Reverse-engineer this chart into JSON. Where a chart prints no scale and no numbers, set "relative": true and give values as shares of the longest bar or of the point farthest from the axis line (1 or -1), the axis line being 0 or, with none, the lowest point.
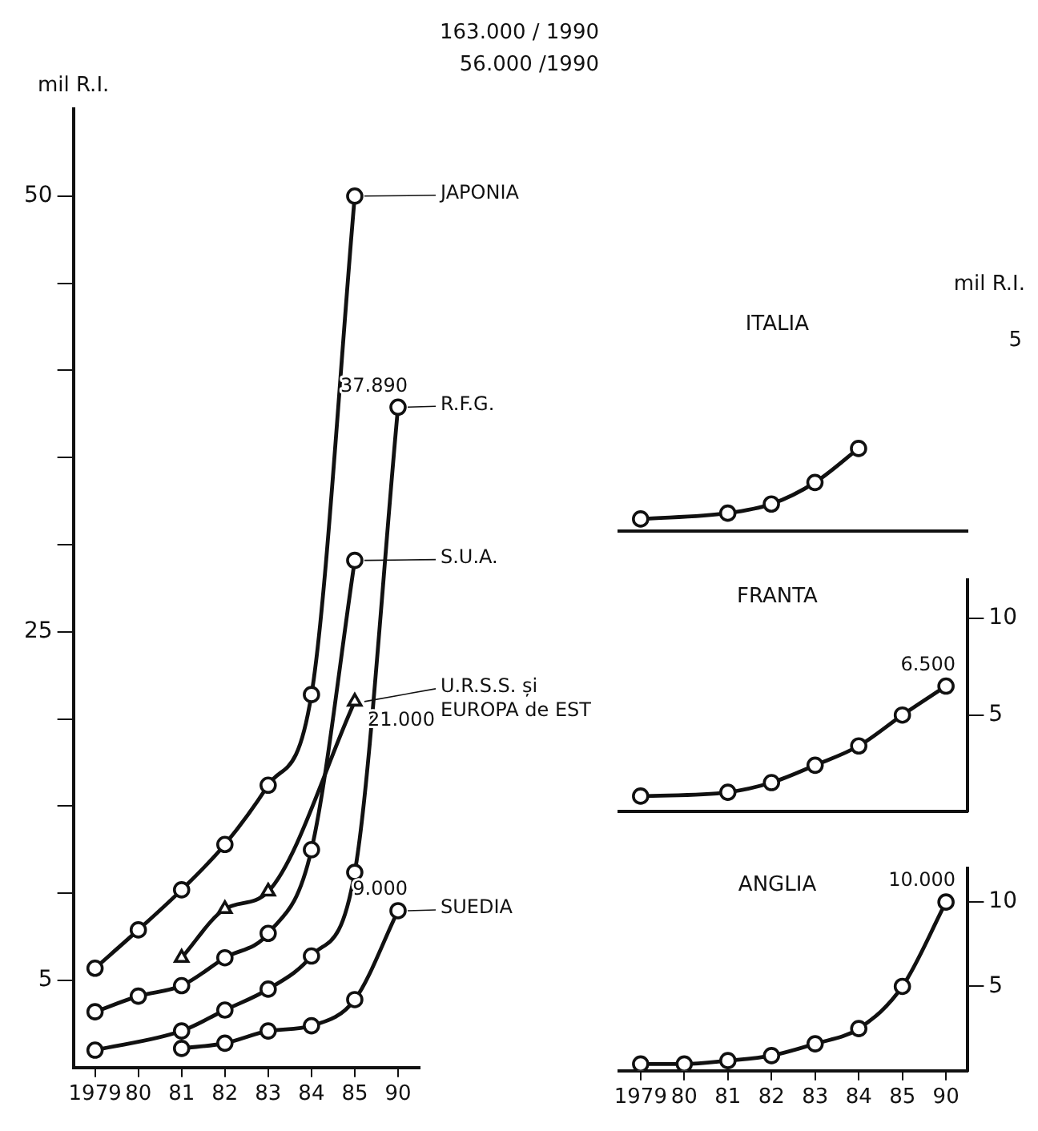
{
  "chart_data": [
    {
      "type": "line",
      "ylabel": "mil R.I.",
      "legend": "right",
      "categories": [
        "1979",
        "80",
        "81",
        "82",
        "83",
        "84",
        "85",
        "90"
      ],
      "ylim": [
        0,
        55
      ],
      "yticks": [
        5,
        {
          "value": 10,
          "label": null
        },
        {
          "value": 15,
          "label": null
        },
        {
          "value": 20,
          "label": null
        },
        25,
        {
          "value": 30,
          "label": null
        },
        {
          "value": 35,
          "label": null
        },
        {
          "value": 40,
          "label": null
        },
        {
          "value": 45,
          "label": null
        },
        50
      ],
      "grid": false,
      "marker": "circle",
      "annotations": [
        "163.000 / 1990",
        "56.000 /1990"
      ],
      "series": [
        {
          "name": "JAPONIA",
          "color": "#111111",
          "values": [
            5.7,
            7.9,
            10.2,
            12.8,
            16.2,
            21.4,
            50,
            null
          ]
        },
        {
          "name": "S.U.A.",
          "color": "#111111",
          "values": [
            3.2,
            4.1,
            4.7,
            6.3,
            7.7,
            12.5,
            29.1,
            null
          ]
        },
        {
          "name": "R.F.G.",
          "color": "#111111",
          "values": [
            1.0,
            null,
            2.1,
            3.3,
            4.5,
            6.4,
            11.2,
            37.89
          ],
          "value_labels": [
            null,
            null,
            null,
            null,
            null,
            null,
            null,
            "37.890"
          ]
        },
        {
          "name": "U.R.S.S. și EUROPA de EST",
          "color": "#111111",
          "marker": "triangle",
          "values": [
            null,
            null,
            6.3,
            9.1,
            10.1,
            null,
            21,
            null
          ],
          "value_labels": [
            null,
            null,
            null,
            null,
            null,
            null,
            "21.000",
            null
          ]
        },
        {
          "name": "SUEDIA",
          "color": "#111111",
          "values": [
            null,
            null,
            1.1,
            1.4,
            2.1,
            2.4,
            3.9,
            9
          ],
          "value_labels": [
            null,
            null,
            null,
            null,
            null,
            null,
            null,
            "9.000"
          ]
        }
      ]
    },
    {
      "type": "line",
      "title": "ITALIA",
      "ylabel": "mil R.I.",
      "relative": true,
      "annotations": [
        "5"
      ],
      "categories": [
        "1979",
        "80",
        "81",
        "82",
        "83",
        "84",
        "85",
        "90"
      ],
      "tick_labels": "y",
      "grid": false,
      "marker": "circle",
      "series": [
        {
          "color": "#111111",
          "values": [
            0.15,
            null,
            0.22,
            0.33,
            0.59,
            1,
            null,
            null
          ]
        }
      ]
    },
    {
      "type": "line",
      "title": "FRANTA",
      "categories": [
        "1979",
        "80",
        "81",
        "82",
        "83",
        "84",
        "85",
        "90"
      ],
      "ylim": [
        0,
        12
      ],
      "yticks": [
        5,
        10
      ],
      "tick_labels": "y",
      "grid": false,
      "marker": "circle",
      "series": [
        {
          "color": "#111111",
          "values": [
            0.8,
            null,
            1.0,
            1.5,
            2.4,
            3.4,
            5.0,
            6.5
          ],
          "value_labels": [
            null,
            null,
            null,
            null,
            null,
            null,
            null,
            "6.500"
          ]
        }
      ]
    },
    {
      "type": "line",
      "title": "ANGLIA",
      "categories": [
        "1979",
        "80",
        "81",
        "82",
        "83",
        "84",
        "85",
        "90"
      ],
      "ylim": [
        0,
        12
      ],
      "yticks": [
        5,
        10
      ],
      "grid": false,
      "marker": "circle",
      "series": [
        {
          "color": "#111111",
          "values": [
            0.4,
            0.4,
            0.6,
            0.9,
            1.6,
            2.5,
            5.0,
            10
          ],
          "value_labels": [
            null,
            null,
            null,
            null,
            null,
            null,
            null,
            "10.000"
          ]
        }
      ]
    }
  ]
}
